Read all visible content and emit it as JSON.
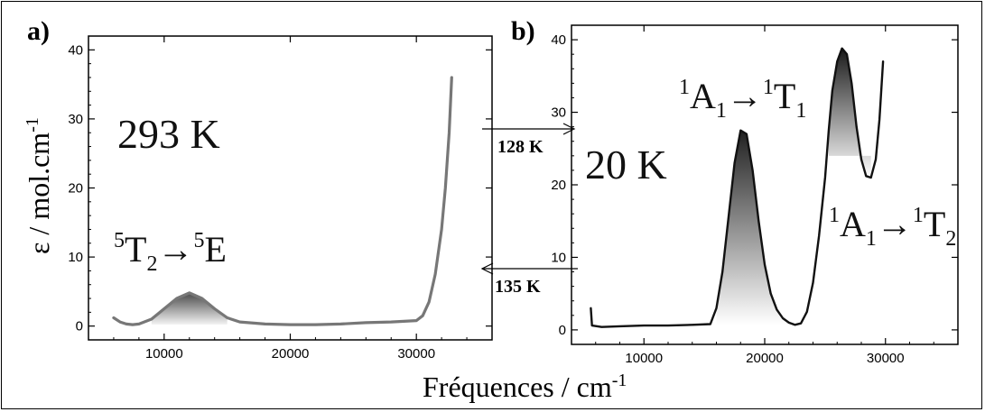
{
  "chart_data": [
    {
      "type": "line",
      "panel_label": "a)",
      "annotation": "293 K",
      "transition": {
        "from": "T",
        "from_sup": "5",
        "from_sub": "2",
        "arrow": "→",
        "to": "E",
        "to_sup": "5"
      },
      "xlim": [
        4000,
        36000
      ],
      "ylim": [
        -2,
        42
      ],
      "x_ticks": [
        10000,
        20000,
        30000
      ],
      "y_ticks": [
        0,
        10,
        20,
        30,
        40
      ],
      "series": [
        {
          "x": [
            6000,
            6500,
            7000,
            7500,
            8000,
            9000,
            10000,
            11000,
            12000,
            13000,
            14000,
            15000,
            16000,
            18000,
            20000,
            22000,
            24000,
            26000,
            28000,
            30000,
            30500,
            31000,
            31500,
            32000,
            32300,
            32600,
            32800
          ],
          "y": [
            1.2,
            0.6,
            0.3,
            0.2,
            0.3,
            1.0,
            2.5,
            4.0,
            4.8,
            4.0,
            2.5,
            1.2,
            0.6,
            0.3,
            0.2,
            0.2,
            0.3,
            0.5,
            0.6,
            0.8,
            1.5,
            3.5,
            7.5,
            14.0,
            20.0,
            28.0,
            36.0
          ]
        }
      ]
    },
    {
      "type": "line",
      "panel_label": "b)",
      "annotation": "20 K",
      "transition_1": {
        "from": "A",
        "from_sup": "1",
        "from_sub": "1",
        "arrow": "→",
        "to": "T",
        "to_sup": "1",
        "to_sub": "1"
      },
      "transition_2": {
        "from": "A",
        "from_sup": "1",
        "from_sub": "1",
        "arrow": "→",
        "to": "T",
        "to_sup": "1",
        "to_sub": "2"
      },
      "xlim": [
        4000,
        36000
      ],
      "ylim": [
        -2,
        42
      ],
      "x_ticks": [
        10000,
        20000,
        30000
      ],
      "y_ticks": [
        0,
        10,
        20,
        30,
        40
      ],
      "series": [
        {
          "x": [
            5600,
            5700,
            6500,
            8000,
            10000,
            12000,
            14000,
            15500,
            16000,
            16500,
            17000,
            17500,
            18000,
            18500,
            19000,
            19500,
            20000,
            20500,
            21000,
            21500,
            22000,
            22500,
            23000,
            23500,
            24000,
            24500,
            25000,
            25300,
            25600,
            26000,
            26400,
            26800,
            27200,
            27600,
            28000,
            28400,
            28800,
            29200,
            29500,
            29800
          ],
          "y": [
            3.0,
            0.6,
            0.4,
            0.5,
            0.6,
            0.6,
            0.7,
            0.8,
            3.0,
            8.0,
            15.5,
            23.0,
            27.5,
            27.0,
            22.0,
            15.0,
            9.0,
            5.0,
            2.8,
            1.6,
            1.0,
            0.7,
            0.9,
            2.5,
            6.5,
            13.0,
            21.0,
            27.5,
            33.0,
            37.0,
            38.8,
            38.0,
            34.0,
            28.0,
            23.5,
            21.2,
            21.0,
            23.5,
            29.0,
            37.0
          ]
        }
      ]
    }
  ],
  "between_arrows": [
    {
      "label": "128 K",
      "direction": "right"
    },
    {
      "label": "135 K",
      "direction": "left"
    }
  ],
  "y_axis_title": {
    "text": "ε / mol.cm",
    "sup": "-1"
  },
  "x_axis_title": {
    "text": "Fréquences / cm",
    "sup": "-1"
  }
}
